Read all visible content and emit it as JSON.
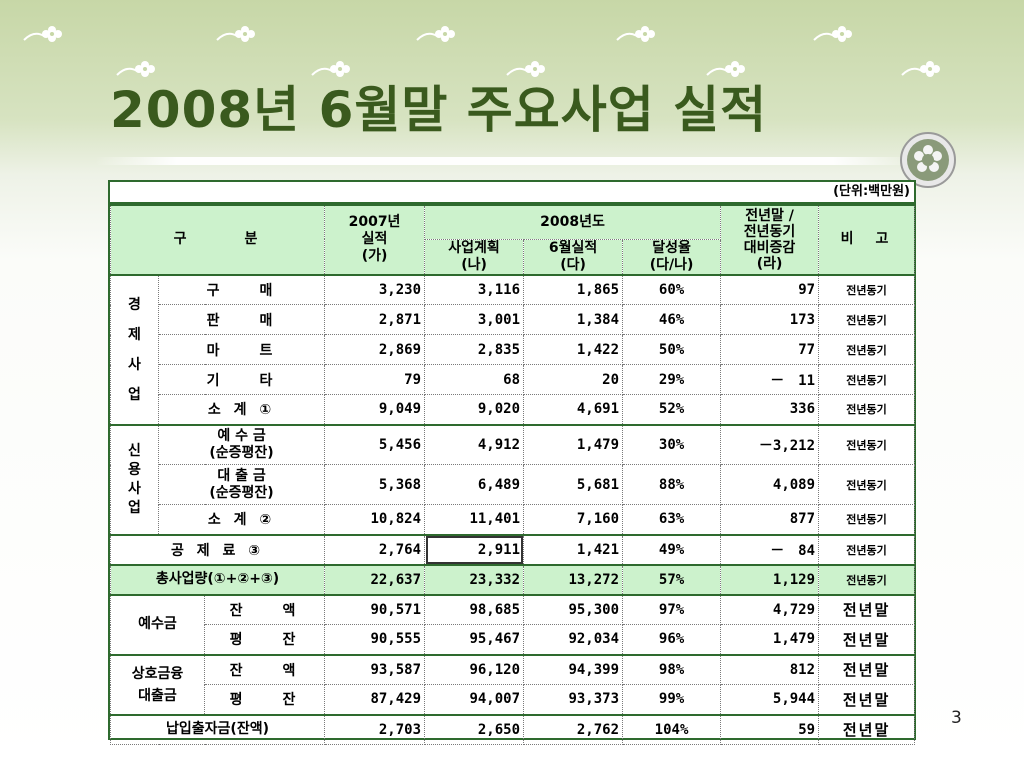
{
  "title": "2008년 6월말 주요사업 실적",
  "page_number": "3",
  "unit_note": "(단위:백만원)",
  "header": {
    "category": "구　　　분",
    "prev_year": "2007년\n실적\n(가)",
    "year_group": "2008년도",
    "plan": "사업계획\n(나)",
    "june": "6월실적\n(다)",
    "rate": "달성율\n(다/나)",
    "change": "전년말 /\n전년동기\n대비증감\n(라)",
    "remark": "비　고"
  },
  "groups": {
    "econ": "경\n제\n사\n업",
    "credit": "신\n용\n사\n업",
    "deposit": "예수금",
    "loan": "상호금융\n대출금"
  },
  "rows": [
    {
      "label": "구　　매",
      "a": "3,230",
      "b": "3,116",
      "c": "1,865",
      "d": "60%",
      "e": "97",
      "f": "전년동기"
    },
    {
      "label": "판　　매",
      "a": "2,871",
      "b": "3,001",
      "c": "1,384",
      "d": "46%",
      "e": "173",
      "f": "전년동기"
    },
    {
      "label": "마　　트",
      "a": "2,869",
      "b": "2,835",
      "c": "1,422",
      "d": "50%",
      "e": "77",
      "f": "전년동기"
    },
    {
      "label": "기　　타",
      "a": "79",
      "b": "68",
      "c": "20",
      "d": "29%",
      "e": "－　11",
      "f": "전년동기"
    },
    {
      "label": "소 계 ①",
      "a": "9,049",
      "b": "9,020",
      "c": "4,691",
      "d": "52%",
      "e": "336",
      "f": "전년동기"
    },
    {
      "label": "예 수 금\n(순증평잔)",
      "a": "5,456",
      "b": "4,912",
      "c": "1,479",
      "d": "30%",
      "e": "－3,212",
      "f": "전년동기"
    },
    {
      "label": "대 출 금\n(순증평잔)",
      "a": "5,368",
      "b": "6,489",
      "c": "5,681",
      "d": "88%",
      "e": "4,089",
      "f": "전년동기"
    },
    {
      "label": "소 계 ②",
      "a": "10,824",
      "b": "11,401",
      "c": "7,160",
      "d": "63%",
      "e": "877",
      "f": "전년동기"
    },
    {
      "label": "공 제 료 ③",
      "a": "2,764",
      "b": "2,911",
      "c": "1,421",
      "d": "49%",
      "e": "－　84",
      "f": "전년동기"
    },
    {
      "label": "총사업량(①+②+③)",
      "a": "22,637",
      "b": "23,332",
      "c": "13,272",
      "d": "57%",
      "e": "1,129",
      "f": "전년동기"
    },
    {
      "label": "잔　　액",
      "a": "90,571",
      "b": "98,685",
      "c": "95,300",
      "d": "97%",
      "e": "4,729",
      "f": "전년말"
    },
    {
      "label": "평　　잔",
      "a": "90,555",
      "b": "95,467",
      "c": "92,034",
      "d": "96%",
      "e": "1,479",
      "f": "전년말"
    },
    {
      "label": "잔　　액",
      "a": "93,587",
      "b": "96,120",
      "c": "94,399",
      "d": "98%",
      "e": "812",
      "f": "전년말"
    },
    {
      "label": "평　　잔",
      "a": "87,429",
      "b": "94,007",
      "c": "93,373",
      "d": "99%",
      "e": "5,944",
      "f": "전년말"
    },
    {
      "label": "납입출자금(잔액)",
      "a": "2,703",
      "b": "2,650",
      "c": "2,762",
      "d": "104%",
      "e": "59",
      "f": "전년말"
    }
  ]
}
